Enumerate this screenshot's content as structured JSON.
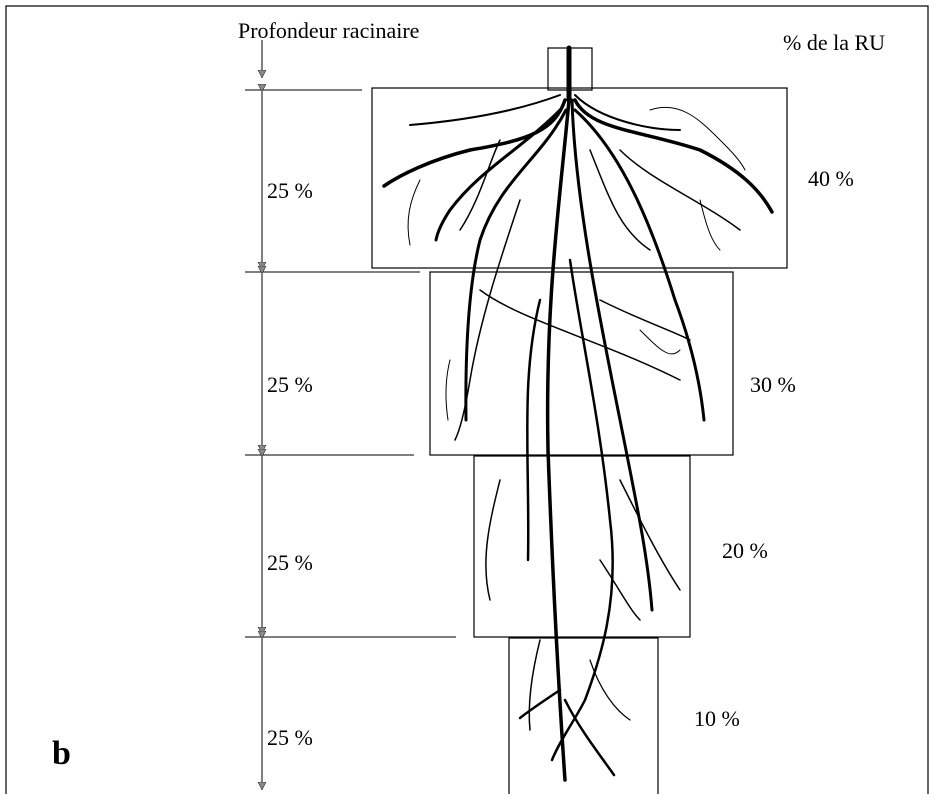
{
  "header": {
    "left": "Profondeur racinaire",
    "right": "% de la RU"
  },
  "layers": [
    {
      "depth": "25 %",
      "share": "40 %"
    },
    {
      "depth": "25 %",
      "share": "30 %"
    },
    {
      "depth": "25 %",
      "share": "20 %"
    },
    {
      "depth": "25 %",
      "share": "10 %"
    }
  ],
  "panel_label": "b"
}
